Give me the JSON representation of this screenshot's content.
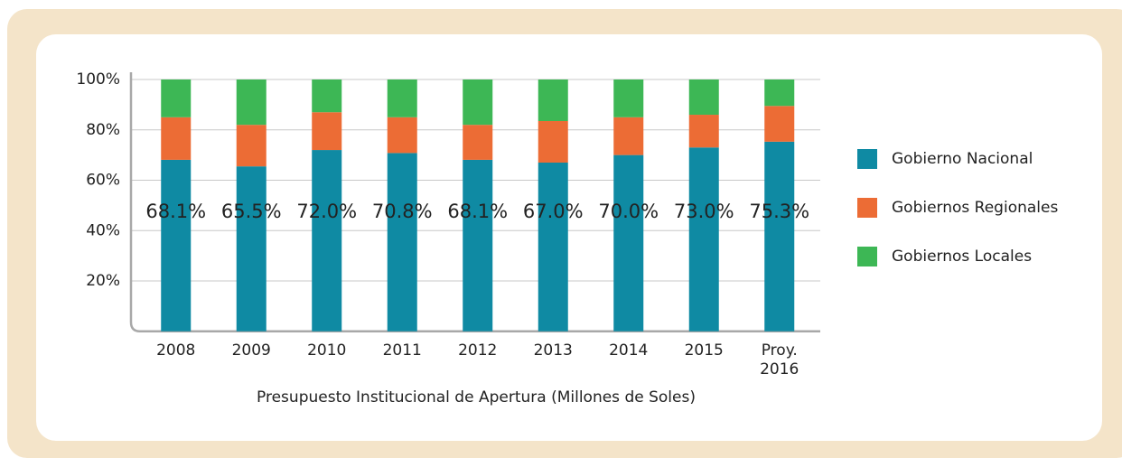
{
  "chart_data": {
    "type": "stacked_bar",
    "categories": [
      "2008",
      "2009",
      "2010",
      "2011",
      "2012",
      "2013",
      "2014",
      "2015",
      "Proy. 2016"
    ],
    "series": [
      {
        "name": "Gobierno Nacional",
        "color": "#0f8aa3",
        "values": [
          68.1,
          65.5,
          72.0,
          70.8,
          68.1,
          67.0,
          70.0,
          73.0,
          75.3
        ],
        "value_labels": [
          "68.1%",
          "65.5%",
          "72.0%",
          "70.8%",
          "68.1%",
          "67.0%",
          "70.0%",
          "73.0%",
          "75.3%"
        ]
      },
      {
        "name": "Gobiernos Regionales",
        "color": "#ec6c35",
        "values": [
          16.9,
          16.5,
          15.0,
          14.2,
          13.9,
          16.5,
          15.0,
          13.0,
          14.2
        ]
      },
      {
        "name": "Gobiernos Locales",
        "color": "#3db755",
        "values": [
          15.0,
          18.0,
          13.0,
          15.0,
          18.0,
          16.5,
          15.0,
          14.0,
          10.5
        ]
      }
    ],
    "xlabel": "Presupuesto Institucional de Apertura (Millones de Soles)",
    "ylim": [
      0,
      100
    ],
    "yticks": [
      {
        "value": 20,
        "label": "20%"
      },
      {
        "value": 40,
        "label": "40%"
      },
      {
        "value": 60,
        "label": "60%"
      },
      {
        "value": 80,
        "label": "80%"
      },
      {
        "value": 100,
        "label": "100%"
      }
    ],
    "grid": true,
    "legend": "right"
  }
}
